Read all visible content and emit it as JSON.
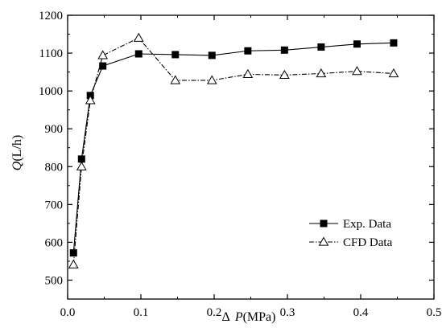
{
  "chart_data": {
    "type": "line",
    "xlabel_symbol": "Δ",
    "xlabel_var": "P",
    "xlabel_unit": "(MPa)",
    "ylabel_var": "Q",
    "ylabel_unit": "(L/h)",
    "xlim": [
      0.0,
      0.5
    ],
    "ylim": [
      450,
      1200
    ],
    "x_ticks": [
      0.0,
      0.1,
      0.2,
      0.3,
      0.4,
      0.5
    ],
    "x_tick_labels": [
      "0.0",
      "0.1",
      "0.2",
      "0.3",
      "0.4",
      "0.5"
    ],
    "y_ticks": [
      500,
      600,
      700,
      800,
      900,
      1000,
      1100,
      1200
    ],
    "y_tick_labels": [
      "500",
      "600",
      "700",
      "800",
      "900",
      "1000",
      "1100",
      "1200"
    ],
    "grid": false,
    "legend_position": "bottom-right",
    "series": [
      {
        "name": "Exp. Data",
        "marker": "filled-square",
        "line_style": "solid",
        "color": "#000000",
        "x": [
          0.008,
          0.019,
          0.031,
          0.048,
          0.097,
          0.147,
          0.197,
          0.246,
          0.296,
          0.346,
          0.395,
          0.445
        ],
        "y": [
          572,
          820,
          988,
          1066,
          1098,
          1096,
          1094,
          1106,
          1108,
          1116,
          1124,
          1127
        ]
      },
      {
        "name": "CFD Data",
        "marker": "open-triangle",
        "line_style": "dash-dot",
        "color": "#000000",
        "x": [
          0.008,
          0.019,
          0.031,
          0.048,
          0.097,
          0.147,
          0.197,
          0.246,
          0.296,
          0.346,
          0.395,
          0.445
        ],
        "y": [
          541,
          800,
          975,
          1094,
          1140,
          1028,
          1028,
          1044,
          1042,
          1046,
          1052,
          1046
        ]
      }
    ]
  }
}
